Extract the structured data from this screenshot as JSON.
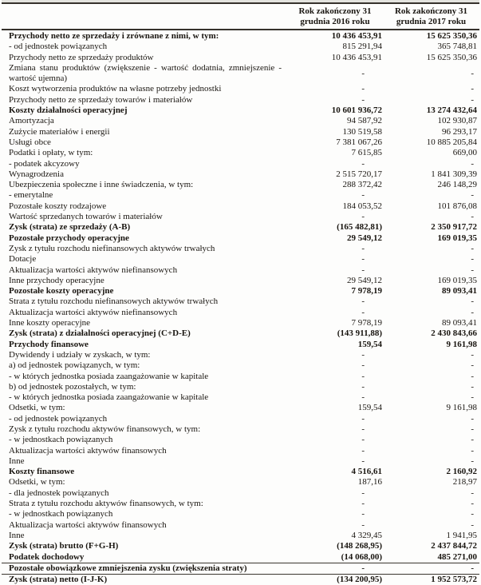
{
  "document": {
    "kind": "rachunek-zyskow-i-strat",
    "columns": [
      "Rok zakończony 31 grudnia 2016 roku",
      "Rok zakończony 31 grudnia 2017 roku"
    ],
    "rows": [
      {
        "label": "Przychody netto ze sprzedaży i zrównane z nimi, w tym:",
        "v2016": "10 436 453,91",
        "v2017": "15 625 350,36",
        "bold": true
      },
      {
        "label": "- od jednostek powiązanych",
        "v2016": "815 291,94",
        "v2017": "365 748,81",
        "bold": false
      },
      {
        "label": "Przychody netto ze sprzedaży produktów",
        "v2016": "10 436 453,91",
        "v2017": "15 625 350,36",
        "bold": false
      },
      {
        "label": "Zmiana stanu produktów (zwiększenie - wartość dodatnia, zmniejszenie - wartość ujemna)",
        "v2016": "-",
        "v2017": "-",
        "bold": false
      },
      {
        "label": "Koszt wytworzenia produktów na własne potrzeby jednostki",
        "v2016": "-",
        "v2017": "-",
        "bold": false
      },
      {
        "label": "Przychody netto ze sprzedaży towarów i materiałów",
        "v2016": "-",
        "v2017": "-",
        "bold": false
      },
      {
        "label": "Koszty działalności operacyjnej",
        "v2016": "10 601 936,72",
        "v2017": "13 274 432,64",
        "bold": true
      },
      {
        "label": "Amortyzacja",
        "v2016": "94 587,92",
        "v2017": "102 930,87",
        "bold": false
      },
      {
        "label": "Zużycie materiałów i energii",
        "v2016": "130 519,58",
        "v2017": "96 293,17",
        "bold": false
      },
      {
        "label": "Usługi obce",
        "v2016": "7 381 067,26",
        "v2017": "10 885 205,84",
        "bold": false
      },
      {
        "label": "Podatki i opłaty, w tym:",
        "v2016": "7 615,85",
        "v2017": "669,00",
        "bold": false
      },
      {
        "label": "- podatek akcyzowy",
        "v2016": "-",
        "v2017": "-",
        "bold": false
      },
      {
        "label": "Wynagrodzenia",
        "v2016": "2 515 720,17",
        "v2017": "1 841 309,39",
        "bold": false
      },
      {
        "label": "Ubezpieczenia społeczne i inne świadczenia, w tym:",
        "v2016": "288 372,42",
        "v2017": "246 148,29",
        "bold": false
      },
      {
        "label": "- emerytalne",
        "v2016": "-",
        "v2017": "-",
        "bold": false
      },
      {
        "label": "Pozostałe koszty rodzajowe",
        "v2016": "184 053,52",
        "v2017": "101 876,08",
        "bold": false
      },
      {
        "label": "Wartość sprzedanych towarów i materiałów",
        "v2016": "-",
        "v2017": "-",
        "bold": false
      },
      {
        "label": "Zysk (strata) ze sprzedaży (A-B)",
        "v2016": "(165 482,81)",
        "v2017": "2 350 917,72",
        "bold": true
      },
      {
        "label": "Pozostałe przychody operacyjne",
        "v2016": "29 549,12",
        "v2017": "169 019,35",
        "bold": true
      },
      {
        "label": "Zysk z tytułu rozchodu niefinansowych aktywów trwałych",
        "v2016": "-",
        "v2017": "-",
        "bold": false
      },
      {
        "label": "Dotacje",
        "v2016": "-",
        "v2017": "-",
        "bold": false
      },
      {
        "label": "Aktualizacja wartości aktywów niefinansowych",
        "v2016": "-",
        "v2017": "-",
        "bold": false
      },
      {
        "label": "Inne przychody operacyjne",
        "v2016": "29 549,12",
        "v2017": "169 019,35",
        "bold": false
      },
      {
        "label": "Pozostałe koszty operacyjne",
        "v2016": "7 978,19",
        "v2017": "89 093,41",
        "bold": true
      },
      {
        "label": "Strata z tytułu rozchodu niefinansowych aktywów trwałych",
        "v2016": "-",
        "v2017": "-",
        "bold": false
      },
      {
        "label": "Aktualizacja wartości aktywów niefinansowych",
        "v2016": "-",
        "v2017": "-",
        "bold": false
      },
      {
        "label": "Inne koszty operacyjne",
        "v2016": "7 978,19",
        "v2017": "89 093,41",
        "bold": false
      },
      {
        "label": "Zysk (strata) z działalności operacyjnej (C+D-E)",
        "v2016": "(143 911,88)",
        "v2017": "2 430 843,66",
        "bold": true
      },
      {
        "label": "Przychody finansowe",
        "v2016": "159,54",
        "v2017": "9 161,98",
        "bold": true
      },
      {
        "label": "Dywidendy i udziały w zyskach, w tym:",
        "v2016": "-",
        "v2017": "-",
        "bold": false
      },
      {
        "label": "a) od jednostek powiązanych, w tym:",
        "v2016": "-",
        "v2017": "-",
        "bold": false
      },
      {
        "label": "- w których jednostka posiada zaangażowanie w kapitale",
        "v2016": "-",
        "v2017": "-",
        "bold": false
      },
      {
        "label": "b) od jednostek pozostałych, w tym:",
        "v2016": "-",
        "v2017": "-",
        "bold": false
      },
      {
        "label": "- w których jednostka posiada zaangażowanie w kapitale",
        "v2016": "-",
        "v2017": "-",
        "bold": false
      },
      {
        "label": "Odsetki, w tym:",
        "v2016": "159,54",
        "v2017": "9 161,98",
        "bold": false
      },
      {
        "label": "- od jednostek powiązanych",
        "v2016": "-",
        "v2017": "-",
        "bold": false
      },
      {
        "label": "Zysk z tytułu rozchodu aktywów finansowych, w tym:",
        "v2016": "-",
        "v2017": "-",
        "bold": false
      },
      {
        "label": "- w jednostkach powiązanych",
        "v2016": "-",
        "v2017": "-",
        "bold": false
      },
      {
        "label": "Aktualizacja wartości aktywów finansowych",
        "v2016": "-",
        "v2017": "-",
        "bold": false
      },
      {
        "label": "Inne",
        "v2016": "-",
        "v2017": "-",
        "bold": false
      },
      {
        "label": "Koszty finansowe",
        "v2016": "4 516,61",
        "v2017": "2 160,92",
        "bold": true
      },
      {
        "label": "Odsetki, w tym:",
        "v2016": "187,16",
        "v2017": "218,97",
        "bold": false
      },
      {
        "label": "- dla jednostek powiązanych",
        "v2016": "-",
        "v2017": "-",
        "bold": false
      },
      {
        "label": "Strata z tytułu rozchodu aktywów finansowych, w tym:",
        "v2016": "-",
        "v2017": "-",
        "bold": false
      },
      {
        "label": "- w jednostkach powiązanych",
        "v2016": "-",
        "v2017": "-",
        "bold": false
      },
      {
        "label": "Aktualizacja wartości aktywów finansowych",
        "v2016": "-",
        "v2017": "-",
        "bold": false
      },
      {
        "label": "Inne",
        "v2016": "4 329,45",
        "v2017": "1 941,95",
        "bold": false
      },
      {
        "label": "Zysk (strata) brutto (F+G-H)",
        "v2016": "(148 268,95)",
        "v2017": "2 437 844,72",
        "bold": true
      },
      {
        "label": "Podatek dochodowy",
        "v2016": "(14 068,00)",
        "v2017": "485 271,00",
        "bold": true
      },
      {
        "label": "Pozostałe obowiązkowe zmniejszenia zysku (zwiększenia straty)",
        "v2016": "-",
        "v2017": "-",
        "bold": true,
        "sep_above": true
      },
      {
        "label": "Zysk (strata) netto (I-J-K)",
        "v2016": "(134 200,95)",
        "v2017": "1 952 573,72",
        "bold": true,
        "sep_above": true
      }
    ],
    "colors": {
      "ink": "#191510",
      "rule": "#36322c",
      "paper": "#fdfdfc"
    }
  }
}
